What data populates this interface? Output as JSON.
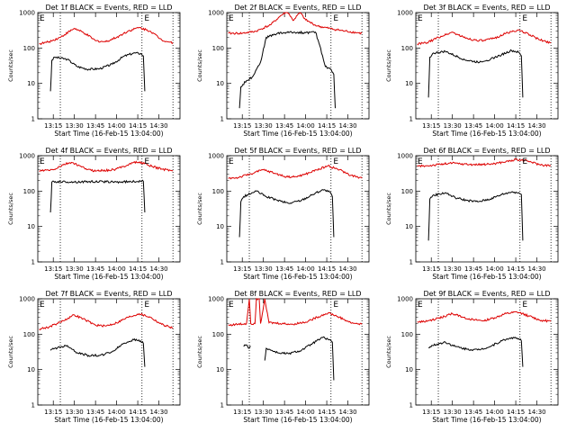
{
  "chart_data": [
    {
      "type": "line",
      "title": "Det 1f BLACK = Events, RED = LLD",
      "xlabel": "Start Time (16-Feb-15 13:04:00)",
      "ylabel": "Counts/sec",
      "yscale": "log",
      "ylim": [
        1,
        1000
      ],
      "xlim": [
        "13:04",
        "14:45"
      ],
      "x_ticks": [
        "13:15",
        "13:30",
        "13:45",
        "14:00",
        "14:15",
        "14:30"
      ],
      "y_ticks": [
        "1",
        "10",
        "100",
        "1000"
      ],
      "vlines": [
        "13:20",
        "14:18",
        "14:40"
      ],
      "markers": [
        {
          "label": "E",
          "x": "14:19"
        }
      ],
      "corner_label": "E",
      "series": [
        {
          "color": "#000000",
          "x": [
            "13:13",
            "13:14",
            "13:16",
            "13:25",
            "13:32",
            "13:40",
            "13:48",
            "13:57",
            "14:05",
            "14:12",
            "14:17",
            "14:19",
            "14:20"
          ],
          "y": [
            6,
            45,
            55,
            48,
            30,
            25,
            26,
            35,
            58,
            72,
            70,
            60,
            6
          ]
        },
        {
          "color": "#dd0000",
          "x": [
            "13:05",
            "13:12",
            "13:20",
            "13:30",
            "13:38",
            "13:45",
            "13:52",
            "14:00",
            "14:08",
            "14:16",
            "14:24",
            "14:32",
            "14:40"
          ],
          "y": [
            130,
            150,
            200,
            360,
            250,
            160,
            150,
            200,
            300,
            380,
            300,
            170,
            140
          ]
        }
      ]
    },
    {
      "type": "line",
      "title": "Det 2f BLACK = Events, RED = LLD",
      "xlabel": "Start Time (16-Feb-15 13:04:00)",
      "ylabel": "Counts/sec",
      "yscale": "log",
      "ylim": [
        1,
        1000
      ],
      "xlim": [
        "13:04",
        "14:45"
      ],
      "x_ticks": [
        "13:15",
        "13:30",
        "13:45",
        "14:00",
        "14:15",
        "14:30"
      ],
      "y_ticks": [
        "1",
        "10",
        "100",
        "1000"
      ],
      "vlines": [
        "13:20",
        "14:18",
        "14:40"
      ],
      "markers": [
        {
          "label": "E",
          "x": "14:19"
        }
      ],
      "corner_label": "E",
      "series": [
        {
          "color": "#000000",
          "x": [
            "13:13",
            "13:14",
            "13:18",
            "13:22",
            "13:25",
            "13:28",
            "13:32",
            "13:40",
            "13:50",
            "14:00",
            "14:07",
            "14:10",
            "14:14",
            "14:18",
            "14:20",
            "14:21"
          ],
          "y": [
            2,
            8,
            12,
            15,
            25,
            40,
            200,
            260,
            280,
            270,
            280,
            120,
            30,
            25,
            18,
            2
          ]
        },
        {
          "color": "#dd0000",
          "x": [
            "13:05",
            "13:15",
            "13:25",
            "13:35",
            "13:42",
            "13:47",
            "13:51",
            "13:56",
            "14:00",
            "14:08",
            "14:18",
            "14:28",
            "14:40"
          ],
          "y": [
            260,
            260,
            300,
            450,
            800,
            1100,
            600,
            1000,
            620,
            420,
            350,
            300,
            260
          ]
        }
      ]
    },
    {
      "type": "line",
      "title": "Det 3f BLACK = Events, RED = LLD",
      "xlabel": "Start Time (16-Feb-15 13:04:00)",
      "ylabel": "Counts/sec",
      "yscale": "log",
      "ylim": [
        1,
        1000
      ],
      "xlim": [
        "13:04",
        "14:45"
      ],
      "x_ticks": [
        "13:15",
        "13:30",
        "13:45",
        "14:00",
        "14:15",
        "14:30"
      ],
      "y_ticks": [
        "1",
        "10",
        "100",
        "1000"
      ],
      "vlines": [
        "13:20",
        "14:18",
        "14:40"
      ],
      "markers": [
        {
          "label": "E",
          "x": "14:19"
        }
      ],
      "corner_label": "E",
      "series": [
        {
          "color": "#000000",
          "x": [
            "13:13",
            "13:14",
            "13:16",
            "13:25",
            "13:32",
            "13:40",
            "13:48",
            "13:57",
            "14:05",
            "14:12",
            "14:17",
            "14:19",
            "14:20"
          ],
          "y": [
            4,
            55,
            70,
            80,
            60,
            45,
            40,
            48,
            65,
            85,
            75,
            60,
            4
          ]
        },
        {
          "color": "#dd0000",
          "x": [
            "13:05",
            "13:12",
            "13:20",
            "13:30",
            "13:38",
            "13:45",
            "13:52",
            "14:00",
            "14:08",
            "14:16",
            "14:24",
            "14:32",
            "14:40"
          ],
          "y": [
            130,
            140,
            200,
            280,
            200,
            170,
            160,
            190,
            260,
            320,
            250,
            170,
            140
          ]
        }
      ]
    },
    {
      "type": "line",
      "title": "Det 4f BLACK = Events, RED = LLD",
      "xlabel": "Start Time (16-Feb-15 13:04:00)",
      "ylabel": "Counts/sec",
      "yscale": "log",
      "ylim": [
        1,
        1000
      ],
      "xlim": [
        "13:04",
        "14:45"
      ],
      "x_ticks": [
        "13:15",
        "13:30",
        "13:45",
        "14:00",
        "14:15",
        "14:30"
      ],
      "y_ticks": [
        "1",
        "10",
        "100",
        "1000"
      ],
      "vlines": [
        "13:20",
        "14:18",
        "14:40"
      ],
      "markers": [
        {
          "label": "E",
          "x": "14:19"
        }
      ],
      "corner_label": "E",
      "series": [
        {
          "color": "#000000",
          "x": [
            "13:13",
            "13:14",
            "13:20",
            "13:30",
            "13:40",
            "13:50",
            "14:00",
            "14:10",
            "14:17",
            "14:19",
            "14:20"
          ],
          "y": [
            25,
            180,
            185,
            180,
            185,
            185,
            180,
            185,
            190,
            190,
            25
          ]
        },
        {
          "color": "#dd0000",
          "x": [
            "13:05",
            "13:15",
            "13:22",
            "13:28",
            "13:35",
            "13:42",
            "13:50",
            "13:58",
            "14:05",
            "14:12",
            "14:18",
            "14:25",
            "14:32",
            "14:40"
          ],
          "y": [
            370,
            400,
            550,
            650,
            480,
            380,
            380,
            400,
            500,
            650,
            640,
            500,
            420,
            380
          ]
        }
      ]
    },
    {
      "type": "line",
      "title": "Det 5f BLACK = Events, RED = LLD",
      "xlabel": "Start Time (16-Feb-15 13:04:00)",
      "ylabel": "Counts/sec",
      "yscale": "log",
      "ylim": [
        1,
        1000
      ],
      "xlim": [
        "13:04",
        "14:45"
      ],
      "x_ticks": [
        "13:15",
        "13:30",
        "13:45",
        "14:00",
        "14:15",
        "14:30"
      ],
      "y_ticks": [
        "1",
        "10",
        "100",
        "1000"
      ],
      "vlines": [
        "13:20",
        "14:18",
        "14:40"
      ],
      "markers": [
        {
          "label": "E",
          "x": "14:19"
        }
      ],
      "corner_label": "E",
      "series": [
        {
          "color": "#000000",
          "x": [
            "13:13",
            "13:14",
            "13:16",
            "13:25",
            "13:32",
            "13:40",
            "13:48",
            "13:57",
            "14:05",
            "14:12",
            "14:17",
            "14:19",
            "14:20"
          ],
          "y": [
            5,
            50,
            70,
            100,
            70,
            55,
            45,
            55,
            80,
            110,
            95,
            70,
            5
          ]
        },
        {
          "color": "#dd0000",
          "x": [
            "13:05",
            "13:12",
            "13:20",
            "13:30",
            "13:38",
            "13:45",
            "13:52",
            "14:00",
            "14:08",
            "14:16",
            "14:24",
            "14:32",
            "14:40"
          ],
          "y": [
            230,
            240,
            300,
            400,
            320,
            260,
            250,
            300,
            400,
            520,
            400,
            280,
            230
          ]
        }
      ]
    },
    {
      "type": "line",
      "title": "Det 6f BLACK = Events, RED = LLD",
      "xlabel": "Start Time (16-Feb-15 13:04:00)",
      "ylabel": "Counts/sec",
      "yscale": "log",
      "ylim": [
        1,
        1000
      ],
      "xlim": [
        "13:04",
        "14:45"
      ],
      "x_ticks": [
        "13:15",
        "13:30",
        "13:45",
        "14:00",
        "14:15",
        "14:30"
      ],
      "y_ticks": [
        "1",
        "10",
        "100",
        "1000"
      ],
      "vlines": [
        "13:20",
        "14:18",
        "14:40"
      ],
      "markers": [
        {
          "label": "E",
          "x": "14:19"
        }
      ],
      "corner_label": "E",
      "series": [
        {
          "color": "#000000",
          "x": [
            "13:13",
            "13:14",
            "13:16",
            "13:25",
            "13:32",
            "13:40",
            "13:48",
            "13:57",
            "14:05",
            "14:12",
            "14:17",
            "14:19",
            "14:20"
          ],
          "y": [
            4,
            60,
            75,
            90,
            65,
            55,
            50,
            60,
            80,
            95,
            90,
            80,
            4
          ]
        },
        {
          "color": "#dd0000",
          "x": [
            "13:05",
            "13:12",
            "13:20",
            "13:30",
            "13:38",
            "13:45",
            "13:52",
            "14:00",
            "14:08",
            "14:16",
            "14:24",
            "14:32",
            "14:40"
          ],
          "y": [
            500,
            520,
            560,
            620,
            580,
            560,
            560,
            600,
            680,
            780,
            700,
            560,
            520
          ]
        }
      ]
    },
    {
      "type": "line",
      "title": "Det 7f BLACK = Events, RED = LLD",
      "xlabel": "Start Time (16-Feb-15 13:04:00)",
      "ylabel": "Counts/sec",
      "yscale": "log",
      "ylim": [
        1,
        1000
      ],
      "xlim": [
        "13:04",
        "14:45"
      ],
      "x_ticks": [
        "13:15",
        "13:30",
        "13:45",
        "14:00",
        "14:15",
        "14:30"
      ],
      "y_ticks": [
        "1",
        "10",
        "100",
        "1000"
      ],
      "vlines": [
        "13:20",
        "14:18",
        "14:40"
      ],
      "markers": [
        {
          "label": "E",
          "x": "14:19"
        }
      ],
      "corner_label": "E",
      "series": [
        {
          "color": "#000000",
          "x": [
            "13:13",
            "13:16",
            "13:25",
            "13:32",
            "13:40",
            "13:48",
            "13:57",
            "14:05",
            "14:12",
            "14:17",
            "14:19",
            "14:20"
          ],
          "y": [
            35,
            40,
            48,
            30,
            25,
            25,
            32,
            55,
            70,
            65,
            55,
            12
          ]
        },
        {
          "color": "#dd0000",
          "x": [
            "13:05",
            "13:12",
            "13:20",
            "13:30",
            "13:38",
            "13:45",
            "13:52",
            "14:00",
            "14:08",
            "14:16",
            "14:24",
            "14:32",
            "14:40"
          ],
          "y": [
            140,
            160,
            220,
            350,
            250,
            180,
            170,
            210,
            300,
            380,
            300,
            190,
            150
          ]
        }
      ]
    },
    {
      "type": "line",
      "title": "Det 8f BLACK = Events, RED = LLD",
      "xlabel": "Start Time (16-Feb-15 13:04:00)",
      "ylabel": "Counts/sec",
      "yscale": "log",
      "ylim": [
        1,
        1000
      ],
      "xlim": [
        "13:04",
        "14:45"
      ],
      "x_ticks": [
        "13:15",
        "13:30",
        "13:45",
        "14:00",
        "14:15",
        "14:30"
      ],
      "y_ticks": [
        "1",
        "10",
        "100",
        "1000"
      ],
      "vlines": [
        "13:20",
        "14:18",
        "14:40"
      ],
      "markers": [
        {
          "label": "E",
          "x": "14:19"
        }
      ],
      "corner_label": "E",
      "series": [
        {
          "color": "#000000",
          "x": [
            "13:16",
            "13:18",
            "13:20",
            "13:21"
          ],
          "y": [
            45,
            50,
            40,
            45
          ]
        },
        {
          "color": "#000000",
          "x": [
            "13:31",
            "13:32",
            "13:40",
            "13:48",
            "13:57",
            "14:05",
            "14:12",
            "14:17",
            "14:19",
            "14:20"
          ],
          "y": [
            18,
            40,
            30,
            28,
            35,
            55,
            80,
            70,
            60,
            5
          ]
        },
        {
          "color": "#dd0000",
          "x": [
            "13:05",
            "13:12",
            "13:18",
            "13:20",
            "13:21",
            "13:24",
            "13:25",
            "13:27",
            "13:28",
            "13:31",
            "13:34",
            "13:42",
            "13:50",
            "14:00",
            "14:08",
            "14:16",
            "14:24",
            "14:32",
            "14:40"
          ],
          "y": [
            180,
            190,
            200,
            1000,
            200,
            200,
            1000,
            1000,
            200,
            1000,
            210,
            200,
            190,
            220,
            300,
            400,
            300,
            210,
            190
          ]
        }
      ]
    },
    {
      "type": "line",
      "title": "Det 9f BLACK = Events, RED = LLD",
      "xlabel": "Start Time (16-Feb-15 13:04:00)",
      "ylabel": "Counts/sec",
      "yscale": "log",
      "ylim": [
        1,
        1000
      ],
      "xlim": [
        "13:04",
        "14:45"
      ],
      "x_ticks": [
        "13:15",
        "13:30",
        "13:45",
        "14:00",
        "14:15",
        "14:30"
      ],
      "y_ticks": [
        "1",
        "10",
        "100",
        "1000"
      ],
      "vlines": [
        "13:20",
        "14:18",
        "14:40"
      ],
      "markers": [
        {
          "label": "E",
          "x": "14:19"
        }
      ],
      "corner_label": "E",
      "series": [
        {
          "color": "#000000",
          "x": [
            "13:13",
            "13:16",
            "13:25",
            "13:32",
            "13:40",
            "13:48",
            "13:57",
            "14:05",
            "14:12",
            "14:17",
            "14:19",
            "14:20"
          ],
          "y": [
            42,
            48,
            60,
            45,
            38,
            36,
            45,
            65,
            80,
            75,
            65,
            12
          ]
        },
        {
          "color": "#dd0000",
          "x": [
            "13:05",
            "13:12",
            "13:20",
            "13:30",
            "13:38",
            "13:45",
            "13:52",
            "14:00",
            "14:08",
            "14:16",
            "14:24",
            "14:32",
            "14:40"
          ],
          "y": [
            220,
            230,
            280,
            380,
            300,
            250,
            240,
            290,
            380,
            420,
            330,
            250,
            230
          ]
        }
      ]
    }
  ]
}
